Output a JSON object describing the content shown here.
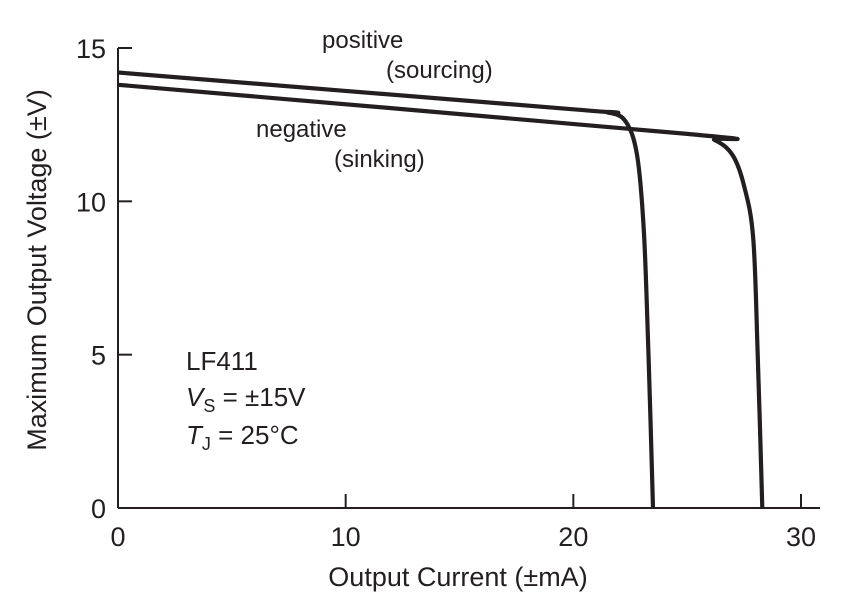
{
  "chart_data": {
    "type": "line",
    "xlabel": "Output Current  (±mA)",
    "ylabel": "Maximum Output Voltage  (±V)",
    "xlim": [
      0,
      31
    ],
    "ylim": [
      0,
      15
    ],
    "x_ticks": [
      0,
      10,
      20,
      30
    ],
    "y_ticks": [
      0,
      5,
      10,
      15
    ],
    "grid": false,
    "series": [
      {
        "key": "positive",
        "label_line1": "positive",
        "label_line2": "(sourcing)",
        "points": [
          [
            0,
            14.2
          ],
          [
            20,
            13.0
          ],
          [
            21.5,
            12.9
          ],
          [
            22.3,
            12.6
          ],
          [
            22.8,
            11.5
          ],
          [
            23.1,
            9.0
          ],
          [
            23.3,
            5.0
          ],
          [
            23.5,
            0
          ]
        ]
      },
      {
        "key": "negative",
        "label_line1": "negative",
        "label_line2": "(sinking)",
        "points": [
          [
            0,
            13.8
          ],
          [
            25,
            12.2
          ],
          [
            26.2,
            12.0
          ],
          [
            27.0,
            11.5
          ],
          [
            27.5,
            10.5
          ],
          [
            27.9,
            8.8
          ],
          [
            28.1,
            5.0
          ],
          [
            28.3,
            0
          ]
        ]
      }
    ],
    "conditions": {
      "device": "LF411",
      "vs_symbol": "V",
      "vs_sub": "S",
      "vs_value": " = ±15V",
      "tj_symbol": "T",
      "tj_sub": "J",
      "tj_value": " = 25°C"
    }
  }
}
